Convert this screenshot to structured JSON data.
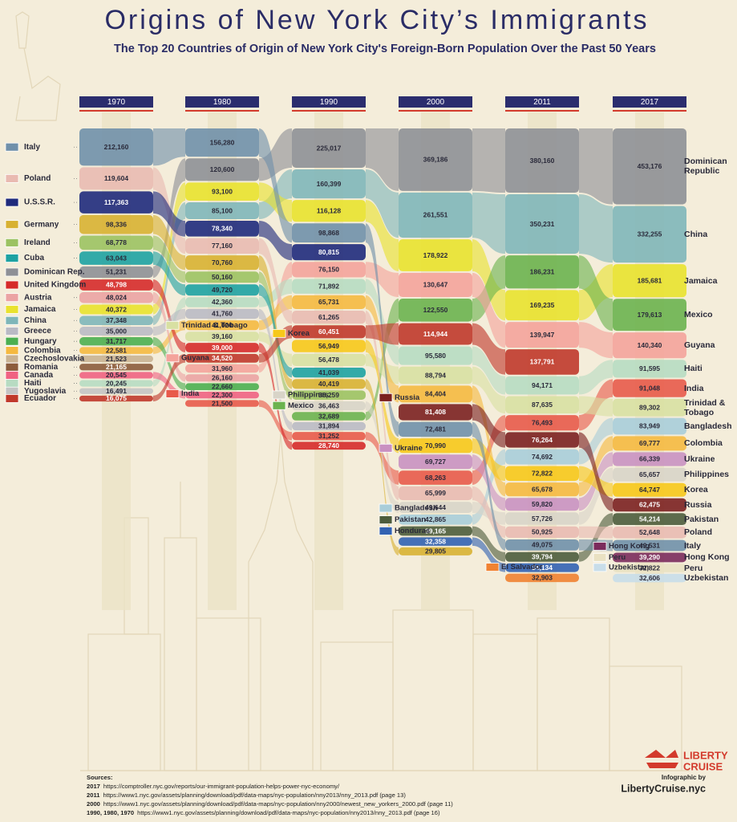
{
  "chart_data": {
    "type": "bump",
    "title": "Origins of New York City’s Immigrants",
    "subtitle": "The Top 20 Countries of Origin of New York City's Foreign-Born Population Over the Past 50 Years",
    "categories": [
      "1970",
      "1980",
      "1990",
      "2000",
      "2011",
      "2017"
    ],
    "series": [
      {
        "name": "Dominican Rep.",
        "end_name": "Dominican Republic",
        "color": "#8e9096",
        "values": [
          51231,
          120600,
          225017,
          369186,
          380160,
          453176
        ],
        "value_labels": [
          "51,231",
          "120,600",
          "225,017",
          "369,186",
          "380,160",
          "453,176"
        ]
      },
      {
        "name": "China",
        "color": "#7fb6b9",
        "values": [
          37348,
          85100,
          160399,
          261551,
          350231,
          332255
        ],
        "value_labels": [
          "37,348",
          "85,100",
          "160,399",
          "261,551",
          "350,231",
          "332,255"
        ]
      },
      {
        "name": "Jamaica",
        "color": "#e9e22e",
        "values": [
          40372,
          93100,
          116128,
          178922,
          169235,
          185681
        ],
        "value_labels": [
          "40,372",
          "93,100",
          "116,128",
          "178,922",
          "169,235",
          "185,681"
        ]
      },
      {
        "name": "Mexico",
        "color": "#6cb34f",
        "values": [
          null,
          null,
          32689,
          122550,
          186231,
          179613
        ],
        "value_labels": [
          null,
          null,
          "32,689",
          "122,550",
          "186,231",
          "179,613"
        ]
      },
      {
        "name": "Guyana",
        "color": "#f4a39b",
        "values": [
          null,
          31960,
          76150,
          130647,
          139947,
          140340
        ],
        "value_labels": [
          null,
          "31,960",
          "76,150",
          "130,647",
          "139,947",
          "140,340"
        ]
      },
      {
        "name": "Haiti",
        "color": "#b7dbc2",
        "values": [
          20245,
          42360,
          71892,
          95580,
          94171,
          91595
        ],
        "value_labels": [
          "20,245",
          "42,360",
          "71,892",
          "95,580",
          "94,171",
          "91,595"
        ]
      },
      {
        "name": "India",
        "color": "#e85a4a",
        "values": [
          null,
          21500,
          31252,
          68263,
          76493,
          91048
        ],
        "value_labels": [
          null,
          "21,500",
          "31,252",
          "68,263",
          "76,493",
          "91,048"
        ]
      },
      {
        "name": "Trinidad & Tobago",
        "color": "#d8e0a2",
        "values": [
          null,
          39160,
          56478,
          88794,
          87635,
          89302
        ],
        "value_labels": [
          null,
          "39,160",
          "56,478",
          "88,794",
          "87,635",
          "89,302"
        ]
      },
      {
        "name": "Bangladesh",
        "color": "#a9cdd9",
        "values": [
          null,
          null,
          null,
          42865,
          74692,
          83949
        ],
        "value_labels": [
          null,
          null,
          null,
          "42,865",
          "74,692",
          "83,949"
        ]
      },
      {
        "name": "Colombia",
        "color": "#f5b940",
        "values": [
          22581,
          41020,
          65731,
          84404,
          65678,
          69777
        ],
        "value_labels": [
          "22,581",
          "41,020",
          "65,731",
          "84,404",
          "65,678",
          "69,777"
        ]
      },
      {
        "name": "Ukraine",
        "color": "#c991c1",
        "values": [
          null,
          null,
          null,
          69727,
          59820,
          66339
        ],
        "value_labels": [
          null,
          null,
          null,
          "69,727",
          "59,820",
          "66,339"
        ]
      },
      {
        "name": "Philippines",
        "color": "#d8d4c8",
        "values": [
          null,
          null,
          36463,
          49644,
          57726,
          65657
        ],
        "value_labels": [
          null,
          null,
          "36,463",
          "49,644",
          "57,726",
          "65,657"
        ]
      },
      {
        "name": "Korea",
        "color": "#f7c81a",
        "values": [
          null,
          null,
          56949,
          70990,
          72822,
          64747
        ],
        "value_labels": [
          null,
          null,
          "56,949",
          "70,990",
          "72,822",
          "64,747"
        ]
      },
      {
        "name": "Russia",
        "color": "#7b2020",
        "values": [
          null,
          null,
          null,
          81408,
          76264,
          62475
        ],
        "value_labels": [
          null,
          null,
          null,
          "81,408",
          "76,264",
          "62,475"
        ]
      },
      {
        "name": "Pakistan",
        "color": "#4d5c3c",
        "values": [
          null,
          null,
          null,
          39165,
          39794,
          54214
        ],
        "value_labels": [
          null,
          null,
          null,
          "39,165",
          "39,794",
          "54,214"
        ]
      },
      {
        "name": "Poland",
        "color": "#e9bab1",
        "values": [
          119604,
          77160,
          61265,
          65999,
          50925,
          52648
        ],
        "value_labels": [
          "119,604",
          "77,160",
          "61,265",
          "65,999",
          "50,925",
          "52,648"
        ]
      },
      {
        "name": "Italy",
        "color": "#7090aa",
        "values": [
          212160,
          156280,
          98868,
          72481,
          49075,
          49531
        ],
        "value_labels": [
          "212,160",
          "156,280",
          "98,868",
          "72,481",
          "49,075",
          "49,531"
        ]
      },
      {
        "name": "Hong Kong",
        "color": "#7b2b5c",
        "values": [
          null,
          null,
          null,
          null,
          null,
          39290
        ],
        "value_labels": [
          null,
          null,
          null,
          null,
          null,
          "39,290"
        ]
      },
      {
        "name": "Peru",
        "color": "#e9e1c2",
        "values": [
          null,
          null,
          null,
          null,
          null,
          32822
        ],
        "value_labels": [
          null,
          null,
          null,
          null,
          null,
          "32,822"
        ]
      },
      {
        "name": "Uzbekistan",
        "color": "#c8dde9",
        "values": [
          null,
          null,
          null,
          null,
          null,
          32606
        ],
        "value_labels": [
          null,
          null,
          null,
          null,
          null,
          "32,606"
        ]
      },
      {
        "name": "U.S.S.R.",
        "color": "#1f2a7c",
        "values": [
          117363,
          78340,
          80815,
          null,
          null,
          null
        ],
        "value_labels": [
          "117,363",
          "78,340",
          "80,815",
          null,
          null,
          null
        ]
      },
      {
        "name": "Germany",
        "color": "#d8b132",
        "values": [
          98336,
          70760,
          40419,
          29805,
          null,
          null
        ],
        "value_labels": [
          "98,336",
          "70,760",
          "40,419",
          "29,805",
          null,
          null
        ]
      },
      {
        "name": "Ireland",
        "color": "#9cc262",
        "values": [
          68778,
          50160,
          38259,
          null,
          null,
          null
        ],
        "value_labels": [
          "68,778",
          "50,160",
          "38,259",
          null,
          null,
          null
        ]
      },
      {
        "name": "Cuba",
        "color": "#1ea2a2",
        "values": [
          63043,
          49720,
          41039,
          null,
          null,
          null
        ],
        "value_labels": [
          "63,043",
          "49,720",
          "41,039",
          null,
          null,
          null
        ]
      },
      {
        "name": "United Kingdom",
        "color": "#d62a2a",
        "values": [
          48798,
          39000,
          28740,
          null,
          null,
          null
        ],
        "value_labels": [
          "48,798",
          "39,000",
          "28,740",
          null,
          null,
          null
        ]
      },
      {
        "name": "Austria",
        "color": "#eba3a3",
        "values": [
          48024,
          26160,
          null,
          null,
          null,
          null
        ],
        "value_labels": [
          "48,024",
          "26,160",
          null,
          null,
          null,
          null
        ]
      },
      {
        "name": "Greece",
        "color": "#babac4",
        "values": [
          35000,
          41760,
          31894,
          null,
          null,
          null
        ],
        "value_labels": [
          "35,000",
          "41,760",
          "31,894",
          null,
          null,
          null
        ]
      },
      {
        "name": "Hungary",
        "color": "#4caf50",
        "values": [
          31717,
          22660,
          null,
          null,
          null,
          null
        ],
        "value_labels": [
          "31,717",
          "22,660",
          null,
          null,
          null,
          null
        ]
      },
      {
        "name": "Czechoslovakia",
        "color": "#c9b292",
        "values": [
          21523,
          null,
          null,
          null,
          null,
          null
        ],
        "value_labels": [
          "21,523",
          null,
          null,
          null,
          null,
          null
        ]
      },
      {
        "name": "Romania",
        "color": "#8c5c3c",
        "values": [
          21165,
          null,
          null,
          null,
          null,
          null
        ],
        "value_labels": [
          "21,165",
          null,
          null,
          null,
          null,
          null
        ]
      },
      {
        "name": "Canada",
        "color": "#f06282",
        "values": [
          20545,
          22300,
          null,
          null,
          null,
          null
        ],
        "value_labels": [
          "20,545",
          "22,300",
          null,
          null,
          null,
          null
        ]
      },
      {
        "name": "Yugoslavia",
        "color": "#c4c4c4",
        "values": [
          16491,
          null,
          null,
          null,
          null,
          null
        ],
        "value_labels": [
          "16,491",
          null,
          null,
          null,
          null,
          null
        ]
      },
      {
        "name": "Ecuador",
        "color": "#c0392b",
        "values": [
          16075,
          34520,
          60451,
          114944,
          137791,
          null
        ],
        "value_labels": [
          "16,075",
          "34,520",
          "60,451",
          "114,944",
          "137,791",
          null
        ]
      },
      {
        "name": "Honduras",
        "color": "#3262b2",
        "values": [
          null,
          null,
          null,
          32358,
          34134,
          null
        ],
        "value_labels": [
          null,
          null,
          null,
          "32,358",
          "34,134",
          null
        ]
      },
      {
        "name": "El Salvador",
        "color": "#f08232",
        "values": [
          null,
          null,
          null,
          null,
          32903,
          null
        ],
        "value_labels": [
          null,
          null,
          null,
          null,
          "32,903",
          null
        ]
      }
    ],
    "sources": {
      "heading": "Sources:",
      "lines": [
        {
          "year": "2017",
          "text": "https://comptroller.nyc.gov/reports/our-immigrant-population-helps-power-nyc-economy/"
        },
        {
          "year": "2011",
          "text": "https://www1.nyc.gov/assets/planning/download/pdf/data-maps/nyc-population/nny2013/nny_2013.pdf (page 13)"
        },
        {
          "year": "2000",
          "text": "https://www1.nyc.gov/assets/planning/download/pdf/data-maps/nyc-population/nny2000/newest_new_yorkers_2000.pdf (page 11)"
        },
        {
          "year": "1990, 1980, 1970",
          "text": "https://www1.nyc.gov/assets/planning/download/pdf/data-maps/nyc-population/nny2013/nny_2013.pdf (page 16)"
        }
      ]
    },
    "credit": {
      "brand_top": "LIBERTY",
      "brand_bottom": "CRUISE",
      "by": "Infographic by",
      "site": "LibertyCruise.nyc"
    }
  }
}
